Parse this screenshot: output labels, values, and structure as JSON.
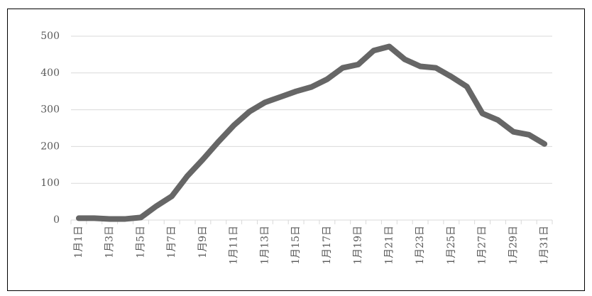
{
  "chart_data": {
    "type": "line",
    "categories": [
      "1月1日",
      null,
      "1月3日",
      null,
      "1月5日",
      null,
      "1月7日",
      null,
      "1月9日",
      null,
      "1月11日",
      null,
      "1月13日",
      null,
      "1月15日",
      null,
      "1月17日",
      null,
      "1月19日",
      null,
      "1月21日",
      null,
      "1月23日",
      null,
      "1月25日",
      null,
      "1月27日",
      null,
      "1月29日",
      null,
      "1月31日"
    ],
    "values": [
      5,
      5,
      3,
      3,
      7,
      38,
      65,
      120,
      165,
      213,
      258,
      295,
      320,
      335,
      350,
      362,
      383,
      414,
      423,
      461,
      472,
      437,
      418,
      414,
      390,
      363,
      290,
      272,
      240,
      232,
      207
    ],
    "color": "#666666",
    "ylim": [
      0,
      500
    ],
    "yticks": [
      0,
      100,
      200,
      300,
      400,
      500
    ],
    "grid": true
  }
}
